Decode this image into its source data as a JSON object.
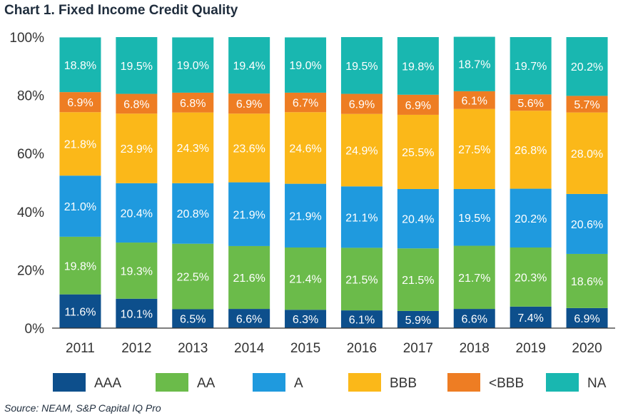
{
  "title": "Chart 1. Fixed Income Credit Quality",
  "source": "Source: NEAM, S&P Capital IQ Pro",
  "colors": {
    "AAA": "#0d4f8c",
    "AA": "#6bbb4a",
    "A": "#1f9ade",
    "BBB": "#fbb819",
    "<BBB": "#ee7d23",
    "NA": "#19b7b0",
    "axis": "#333333",
    "label": "#ffffff",
    "label_dark": "#1f2d3d"
  },
  "chart_data": {
    "type": "bar",
    "stacked": true,
    "categories": [
      "2011",
      "2012",
      "2013",
      "2014",
      "2015",
      "2016",
      "2017",
      "2018",
      "2019",
      "2020"
    ],
    "ylim": [
      0,
      100
    ],
    "yticks": [
      "0%",
      "20%",
      "40%",
      "60%",
      "80%",
      "100%"
    ],
    "ytick_values": [
      0,
      20,
      40,
      60,
      80,
      100
    ],
    "legend_position": "bottom",
    "series": [
      {
        "name": "AAA",
        "values": [
          11.6,
          10.1,
          6.5,
          6.6,
          6.3,
          6.1,
          5.9,
          6.6,
          7.4,
          6.9
        ],
        "labels": [
          "11.6%",
          "10.1%",
          "6.5%",
          "6.6%",
          "6.3%",
          "6.1%",
          "5.9%",
          "6.6%",
          "7.4%",
          "6.9%"
        ]
      },
      {
        "name": "AA",
        "values": [
          19.8,
          19.3,
          22.5,
          21.6,
          21.4,
          21.5,
          21.5,
          21.7,
          20.3,
          18.6
        ],
        "labels": [
          "19.8%",
          "19.3%",
          "22.5%",
          "21.6%",
          "21.4%",
          "21.5%",
          "21.5%",
          "21.7%",
          "20.3%",
          "18.6%"
        ]
      },
      {
        "name": "A",
        "values": [
          21.0,
          20.4,
          20.8,
          21.9,
          21.9,
          21.1,
          20.4,
          19.5,
          20.2,
          20.6
        ],
        "labels": [
          "21.0%",
          "20.4%",
          "20.8%",
          "21.9%",
          "21.9%",
          "21.1%",
          "20.4%",
          "19.5%",
          "20.2%",
          "20.6%"
        ]
      },
      {
        "name": "BBB",
        "values": [
          21.8,
          23.9,
          24.3,
          23.6,
          24.6,
          24.9,
          25.5,
          27.5,
          26.8,
          28.0
        ],
        "labels": [
          "21.8%",
          "23.9%",
          "24.3%",
          "23.6%",
          "24.6%",
          "24.9%",
          "25.5%",
          "27.5%",
          "26.8%",
          "28.0%"
        ]
      },
      {
        "name": "<BBB",
        "values": [
          6.9,
          6.8,
          6.8,
          6.9,
          6.7,
          6.9,
          6.9,
          6.1,
          5.6,
          5.7
        ],
        "labels": [
          "6.9%",
          "6.8%",
          "6.8%",
          "6.9%",
          "6.7%",
          "6.9%",
          "6.9%",
          "6.1%",
          "5.6%",
          "5.7%"
        ]
      },
      {
        "name": "NA",
        "values": [
          18.8,
          19.5,
          19.0,
          19.4,
          19.0,
          19.5,
          19.8,
          18.7,
          19.7,
          20.2
        ],
        "labels": [
          "18.8%",
          "19.5%",
          "19.0%",
          "19.4%",
          "19.0%",
          "19.5%",
          "19.8%",
          "18.7%",
          "19.7%",
          "20.2%"
        ]
      }
    ]
  }
}
